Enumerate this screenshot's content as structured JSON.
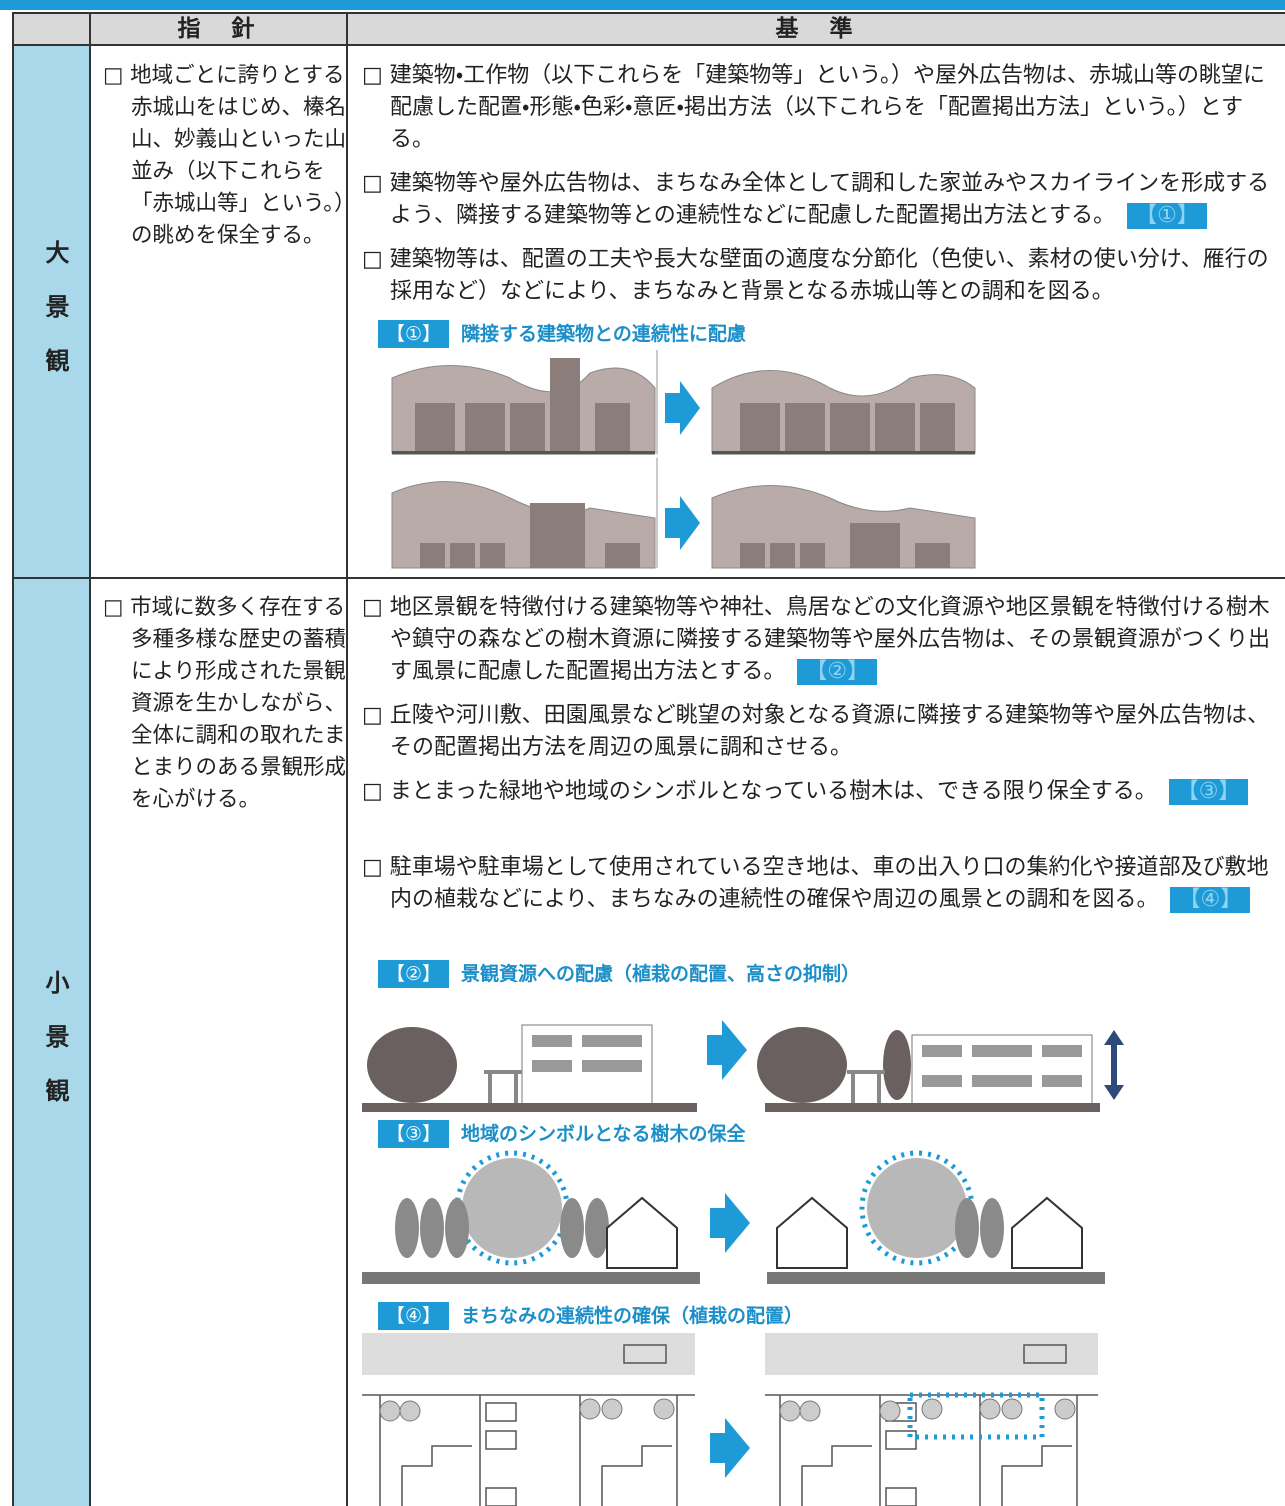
{
  "table": {
    "headers": [
      "指　針",
      "基　準"
    ],
    "rows": [
      {
        "label": "大景観",
        "guideline": "□ 地域ごとに誇りとする赤城山をはじめ、榛名山、妙義山といった山並み（以下これらを「赤城山等」という。）の眺めを保全する。",
        "criteria": [
          {
            "text": "□ 建築物・工作物（以下これらを「建築物等」という。）や屋外広告物は、赤城山等の眺望に配慮した配置・形態・色彩・意匠・掲出方法（以下これらを「配置掲出方法」という。）とする。"
          },
          {
            "text": "□ 建築物等や屋外広告物は、まちなみ全体として調和した家並みやスカイラインを形成するよう、隣接する建築物等との連続性などに配慮した配置掲出方法とする。",
            "tag": "【①】"
          },
          {
            "text": "□ 建築物等は、配置の工夫や長大な壁面の適度な分節化（色使い、素材の使い分け、雁行の採用など）などにより、まちなみと背景となる赤城山等との調和を図る。"
          }
        ],
        "figures": [
          {
            "tag": "【①】",
            "caption": "隣接する建築物との連続性に配慮"
          }
        ]
      },
      {
        "label": "小景観",
        "guideline": "□ 市域に数多く存在する多種多様な歴史の蓄積により形成された景観資源を生かしながら、全体に調和の取れたまとまりのある景観形成を心がける。",
        "criteria": [
          {
            "text": "□ 地区景観を特徴付ける建築物等や神社、鳥居などの文化資源や地区景観を特徴付ける樹木や鎮守の森などの樹木資源に隣接する建築物等や屋外広告物は、その景観資源がつくり出す風景に配慮した配置掲出方法とする。",
            "tag": "【②】"
          },
          {
            "text": "□ 丘陵や河川敷、田園風景など眺望の対象となる資源に隣接する建築物等や屋外広告物は、その配置掲出方法を周辺の風景に調和させる。"
          },
          {
            "text": "□ まとまった緑地や地域のシンボルとなっている樹木は、できる限り保全する。",
            "tag": "【③】"
          },
          {
            "text": "□ 駐車場や駐車場として使用されている空き地は、車の出入り口の集約化や接道部及び敷地内の植栽などにより、まちなみの連続性の確保や周辺の風景との調和を図る。",
            "tag": "【④】"
          }
        ],
        "figures": [
          {
            "tag": "【②】",
            "caption": "景観資源への配慮（植栽の配置、高さの抑制）"
          },
          {
            "tag": "【③】",
            "caption": "地域のシンボルとなる樹木の保全"
          },
          {
            "tag": "【④】",
            "caption": "まちなみの連続性の確保（植栽の配置）"
          }
        ]
      }
    ]
  }
}
